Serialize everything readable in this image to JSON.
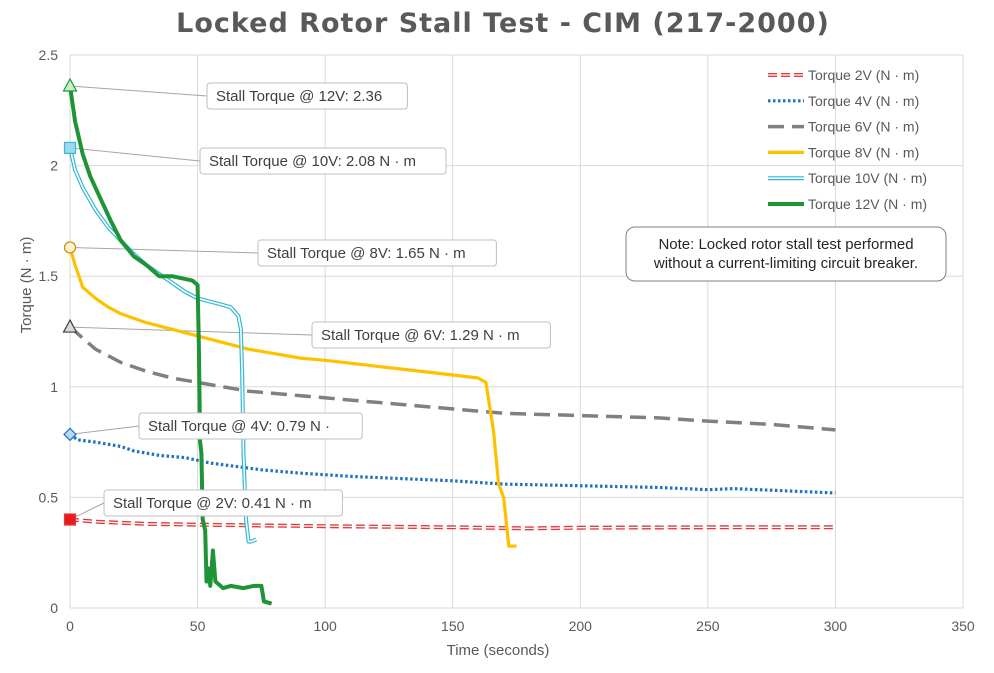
{
  "chart_data": {
    "type": "line",
    "title": "Locked Rotor Stall Test - CIM (217-2000)",
    "xlabel": "Time (seconds)",
    "ylabel": "Torque (N · m)",
    "xlim": [
      0,
      350
    ],
    "ylim": [
      0,
      2.5
    ],
    "x_ticks": [
      "0",
      "50",
      "100",
      "150",
      "200",
      "250",
      "300",
      "350"
    ],
    "y_ticks": [
      "0",
      "0.5",
      "1",
      "1.5",
      "2",
      "2.5"
    ],
    "x_tick_values": [
      0,
      50,
      100,
      150,
      200,
      250,
      300,
      350
    ],
    "y_tick_values": [
      0,
      0.5,
      1,
      1.5,
      2,
      2.5
    ],
    "grid": true,
    "legend_position": "top-right",
    "note": {
      "line1": "Note: Locked rotor stall test performed",
      "line2": "without a current-limiting circuit breaker."
    },
    "series": [
      {
        "name": "Torque 2V (N · m)",
        "color": "#e03a3a",
        "style": "double-dashed",
        "marker": "square",
        "callout": "Stall Torque @ 2V: 0.41 N · m",
        "points": [
          [
            0,
            0.4
          ],
          [
            10,
            0.39
          ],
          [
            30,
            0.38
          ],
          [
            60,
            0.375
          ],
          [
            100,
            0.37
          ],
          [
            150,
            0.365
          ],
          [
            180,
            0.36
          ],
          [
            200,
            0.363
          ],
          [
            250,
            0.365
          ],
          [
            300,
            0.365
          ]
        ]
      },
      {
        "name": "Torque 4V (N · m)",
        "color": "#1f72c0",
        "style": "dotted",
        "marker": "diamond",
        "callout": "Stall Torque @ 4V: 0.79 N ·",
        "points": [
          [
            0,
            0.785
          ],
          [
            3,
            0.76
          ],
          [
            10,
            0.75
          ],
          [
            20,
            0.73
          ],
          [
            25,
            0.71
          ],
          [
            35,
            0.69
          ],
          [
            45,
            0.68
          ],
          [
            55,
            0.655
          ],
          [
            65,
            0.64
          ],
          [
            75,
            0.625
          ],
          [
            90,
            0.61
          ],
          [
            110,
            0.595
          ],
          [
            130,
            0.585
          ],
          [
            150,
            0.575
          ],
          [
            170,
            0.56
          ],
          [
            190,
            0.555
          ],
          [
            210,
            0.55
          ],
          [
            230,
            0.545
          ],
          [
            250,
            0.535
          ],
          [
            260,
            0.54
          ],
          [
            280,
            0.53
          ],
          [
            300,
            0.52
          ]
        ]
      },
      {
        "name": "Torque 6V (N · m)",
        "color": "#808080",
        "style": "dashed",
        "marker": "triangle",
        "callout": "Stall Torque @ 6V: 1.29 N · m",
        "points": [
          [
            0,
            1.27
          ],
          [
            5,
            1.22
          ],
          [
            10,
            1.17
          ],
          [
            15,
            1.14
          ],
          [
            20,
            1.11
          ],
          [
            30,
            1.07
          ],
          [
            40,
            1.04
          ],
          [
            55,
            1.01
          ],
          [
            70,
            0.98
          ],
          [
            90,
            0.96
          ],
          [
            110,
            0.94
          ],
          [
            130,
            0.92
          ],
          [
            150,
            0.9
          ],
          [
            170,
            0.88
          ],
          [
            200,
            0.87
          ],
          [
            230,
            0.86
          ],
          [
            250,
            0.845
          ],
          [
            275,
            0.83
          ],
          [
            300,
            0.805
          ]
        ]
      },
      {
        "name": "Torque 8V (N · m)",
        "color": "#ffc000",
        "style": "solid",
        "marker": "circle",
        "callout": "Stall Torque @ 8V: 1.65 N · m",
        "points": [
          [
            0,
            1.63
          ],
          [
            2,
            1.55
          ],
          [
            5,
            1.45
          ],
          [
            10,
            1.4
          ],
          [
            15,
            1.36
          ],
          [
            20,
            1.33
          ],
          [
            30,
            1.29
          ],
          [
            40,
            1.26
          ],
          [
            50,
            1.23
          ],
          [
            60,
            1.2
          ],
          [
            70,
            1.17
          ],
          [
            80,
            1.15
          ],
          [
            90,
            1.13
          ],
          [
            100,
            1.12
          ],
          [
            115,
            1.1
          ],
          [
            130,
            1.08
          ],
          [
            145,
            1.06
          ],
          [
            160,
            1.04
          ],
          [
            163,
            1.02
          ],
          [
            166,
            0.8
          ],
          [
            168,
            0.56
          ],
          [
            170,
            0.5
          ],
          [
            172,
            0.28
          ],
          [
            175,
            0.28
          ]
        ]
      },
      {
        "name": "Torque 10V (N · m)",
        "color": "#33b8d6",
        "style": "double",
        "marker": "square",
        "callout": "Stall Torque @ 10V: 2.08 N · m",
        "points": [
          [
            0,
            2.08
          ],
          [
            2,
            1.98
          ],
          [
            5,
            1.9
          ],
          [
            10,
            1.8
          ],
          [
            15,
            1.72
          ],
          [
            20,
            1.66
          ],
          [
            25,
            1.6
          ],
          [
            30,
            1.55
          ],
          [
            35,
            1.51
          ],
          [
            40,
            1.47
          ],
          [
            45,
            1.43
          ],
          [
            50,
            1.4
          ],
          [
            60,
            1.37
          ],
          [
            63,
            1.36
          ],
          [
            66,
            1.32
          ],
          [
            67,
            1.26
          ],
          [
            67.5,
            1.05
          ],
          [
            68,
            0.7
          ],
          [
            69,
            0.4
          ],
          [
            70,
            0.3
          ],
          [
            71,
            0.3
          ],
          [
            73,
            0.31
          ]
        ]
      },
      {
        "name": "Torque 12V (N · m)",
        "color": "#1e9437",
        "style": "solid-thick",
        "marker": "triangle",
        "callout": "Stall Torque @ 12V: 2.36",
        "points": [
          [
            0,
            2.36
          ],
          [
            2,
            2.2
          ],
          [
            5,
            2.05
          ],
          [
            8,
            1.95
          ],
          [
            12,
            1.85
          ],
          [
            16,
            1.75
          ],
          [
            20,
            1.66
          ],
          [
            25,
            1.59
          ],
          [
            30,
            1.55
          ],
          [
            35,
            1.5
          ],
          [
            40,
            1.5
          ],
          [
            48,
            1.48
          ],
          [
            50,
            1.46
          ],
          [
            50.5,
            1.2
          ],
          [
            51,
            0.75
          ],
          [
            51.5,
            0.7
          ],
          [
            52,
            0.4
          ],
          [
            53,
            0.35
          ],
          [
            53.5,
            0.12
          ],
          [
            54,
            0.18
          ],
          [
            55,
            0.1
          ],
          [
            56,
            0.26
          ],
          [
            57,
            0.12
          ],
          [
            60,
            0.09
          ],
          [
            63,
            0.1
          ],
          [
            68,
            0.09
          ],
          [
            72,
            0.1
          ],
          [
            75,
            0.1
          ],
          [
            76,
            0.03
          ],
          [
            79,
            0.02
          ]
        ]
      }
    ]
  }
}
